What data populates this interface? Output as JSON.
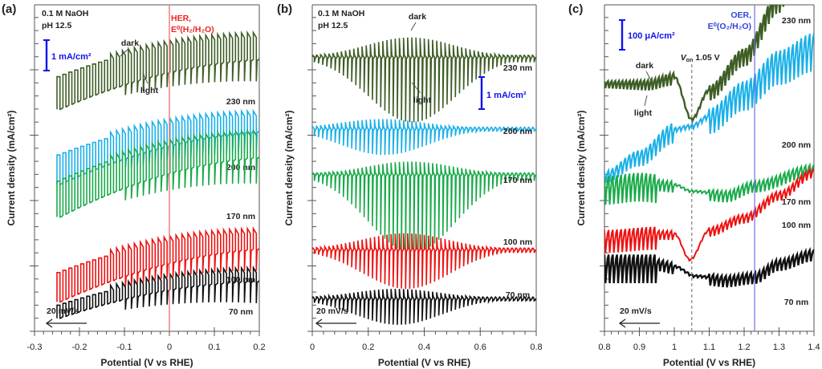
{
  "chart_data": [
    {
      "panel": "(a)",
      "type": "line",
      "title": "",
      "annotation": [
        "0.1 M NaOH",
        "pH 12.5"
      ],
      "xlabel": "Potential (V vs RHE)",
      "ylabel": "Current density (mA/cm²)",
      "xlim": [
        -0.3,
        0.2
      ],
      "xticks": [
        "-0.3",
        "-0.2",
        "-0.1",
        "0",
        "0.1",
        "0.2"
      ],
      "xtick_values": [
        -0.3,
        -0.2,
        -0.1,
        0,
        0.1,
        0.2
      ],
      "scale_bar": "1 mA/cm²",
      "vline": {
        "x": 0,
        "label1": "HER,",
        "label2": "E⁰(H₂/H₂O)",
        "color": "#f08080"
      },
      "scan_rate": "20 mV/s",
      "pointer_labels": [
        "dark",
        "light"
      ],
      "x_start": -0.25,
      "x_end": 0.2,
      "series": [
        {
          "name": "230 nm",
          "color": "#3e5e26",
          "base_start": 0.78,
          "base_end": 0.9,
          "curve": "rise",
          "amp_start": 0.1,
          "amp_end": 0.07,
          "spike": 0.05
        },
        {
          "name": "200 nm",
          "color": "#1ab0e8",
          "base_start": 0.54,
          "base_end": 0.66,
          "curve": "rise",
          "amp_start": 0.09,
          "amp_end": 0.05,
          "spike": 0.05
        },
        {
          "name": "170 nm",
          "color": "#1aaa4a",
          "base_start": 0.46,
          "base_end": 0.6,
          "curve": "rise",
          "amp_start": 0.11,
          "amp_end": 0.07,
          "spike": 0.06
        },
        {
          "name": "100 nm",
          "color": "#ee1111",
          "base_start": 0.18,
          "base_end": 0.3,
          "curve": "rise",
          "amp_start": 0.09,
          "amp_end": 0.05,
          "spike": 0.05
        },
        {
          "name": "70 nm",
          "color": "#111111",
          "base_start": 0.08,
          "base_end": 0.18,
          "curve": "rise",
          "amp_start": 0.04,
          "amp_end": 0.03,
          "spike": 0.05
        }
      ]
    },
    {
      "panel": "(b)",
      "type": "line",
      "annotation": [
        "0.1 M NaOH",
        "pH 12.5"
      ],
      "xlabel": "Potential (V vs RHE)",
      "ylabel": "Current density (mA/cm²)",
      "xlim": [
        0,
        0.8
      ],
      "xticks": [
        "0",
        "0.2",
        "0.4",
        "0.6",
        "0.8"
      ],
      "xtick_values": [
        0,
        0.2,
        0.4,
        0.6,
        0.8
      ],
      "scale_bar": "1 mA/cm²",
      "scan_rate": "20 mV/s",
      "pointer_labels": [
        "dark",
        "light"
      ],
      "x_start": 0,
      "x_end": 0.8,
      "series": [
        {
          "name": "230 nm",
          "color": "#3e5e26",
          "base": 0.84,
          "up_peak": 0.06,
          "down_peak": 0.2,
          "peak_x": 0.35
        },
        {
          "name": "200 nm",
          "color": "#1ab0e8",
          "base": 0.62,
          "up_peak": 0.03,
          "down_peak": 0.08,
          "peak_x": 0.25
        },
        {
          "name": "170 nm",
          "color": "#1aaa4a",
          "base": 0.48,
          "up_peak": 0.04,
          "down_peak": 0.24,
          "peak_x": 0.35
        },
        {
          "name": "100 nm",
          "color": "#ee1111",
          "base": 0.25,
          "up_peak": 0.05,
          "down_peak": 0.12,
          "peak_x": 0.33
        },
        {
          "name": "70 nm",
          "color": "#111111",
          "base": 0.1,
          "up_peak": 0.03,
          "down_peak": 0.08,
          "peak_x": 0.3
        }
      ]
    },
    {
      "panel": "(c)",
      "type": "line",
      "xlabel": "Potential (V vs RHE)",
      "ylabel": "Current density (mA/cm²)",
      "xlim": [
        0.8,
        1.4
      ],
      "xticks": [
        "0.8",
        "0.9",
        "1",
        "1.1",
        "1.2",
        "1.3",
        "1.4"
      ],
      "xtick_values": [
        0.8,
        0.9,
        1.0,
        1.1,
        1.2,
        1.3,
        1.4
      ],
      "scale_bar": "100 μA/cm²",
      "vline": {
        "x": 1.23,
        "label1": "OER,",
        "label2": "E⁰(O₂/H₂O)",
        "color": "#7070ee"
      },
      "von": {
        "x": 1.05,
        "label": "V",
        "sub": "on",
        "value": "1.05 V"
      },
      "scan_rate": "20 mV/s",
      "pointer_labels": [
        "dark",
        "light"
      ],
      "x_start": 0.8,
      "x_end": 1.4,
      "series": [
        {
          "name": "230 nm",
          "color": "#3e5e26",
          "pts": [
            [
              0.8,
              0.76
            ],
            [
              0.92,
              0.76
            ],
            [
              1.0,
              0.78
            ],
            [
              1.05,
              0.65
            ],
            [
              1.1,
              0.74
            ],
            [
              1.2,
              0.85
            ],
            [
              1.3,
              1.02
            ],
            [
              1.32,
              1.05
            ]
          ],
          "osc": 0.03
        },
        {
          "name": "200 nm",
          "color": "#1ab0e8",
          "pts": [
            [
              0.8,
              0.48
            ],
            [
              0.9,
              0.54
            ],
            [
              1.0,
              0.62
            ],
            [
              1.05,
              0.63
            ],
            [
              1.1,
              0.66
            ],
            [
              1.2,
              0.74
            ],
            [
              1.3,
              0.83
            ],
            [
              1.4,
              0.88
            ]
          ],
          "osc": 0.05
        },
        {
          "name": "170 nm",
          "color": "#1aaa4a",
          "pts": [
            [
              0.8,
              0.45
            ],
            [
              0.9,
              0.46
            ],
            [
              1.0,
              0.45
            ],
            [
              1.05,
              0.43
            ],
            [
              1.15,
              0.42
            ],
            [
              1.23,
              0.45
            ],
            [
              1.4,
              0.5
            ]
          ],
          "osc": 0.025
        },
        {
          "name": "100 nm",
          "color": "#ee1111",
          "pts": [
            [
              0.8,
              0.29
            ],
            [
              0.95,
              0.3
            ],
            [
              1.0,
              0.3
            ],
            [
              1.045,
              0.22
            ],
            [
              1.1,
              0.31
            ],
            [
              1.2,
              0.35
            ],
            [
              1.3,
              0.42
            ],
            [
              1.4,
              0.49
            ]
          ],
          "osc": 0.02
        },
        {
          "name": "70 nm",
          "color": "#111111",
          "pts": [
            [
              0.8,
              0.21
            ],
            [
              0.95,
              0.21
            ],
            [
              1.0,
              0.2
            ],
            [
              1.06,
              0.17
            ],
            [
              1.15,
              0.16
            ],
            [
              1.23,
              0.17
            ],
            [
              1.3,
              0.21
            ],
            [
              1.4,
              0.24
            ]
          ],
          "osc": 0.025
        }
      ]
    }
  ]
}
